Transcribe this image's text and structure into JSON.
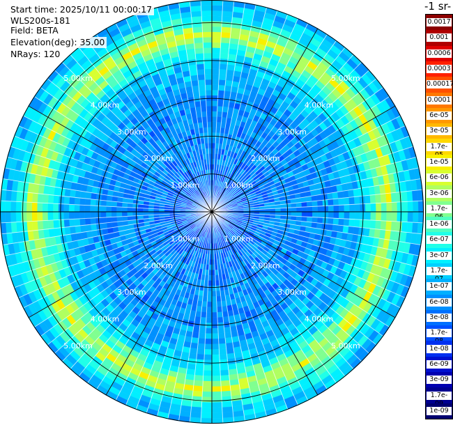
{
  "info": {
    "start_time": "Start time: 2025/10/11 00:00:17",
    "instrument": "WLS200s-181",
    "field": "Field: BETA",
    "elevation": "Elevation(deg): 35.00",
    "nrays": "NRays: 120"
  },
  "colorbar": {
    "title_visible": "-1 sr-",
    "labels": [
      "0.0017",
      "0.001",
      "0.0006",
      "0.0003",
      "0.00017",
      "0.0001",
      "6e-05",
      "3e-05",
      "1.7e-05",
      "1e-05",
      "6e-06",
      "3e-06",
      "1.7e-06",
      "1e-06",
      "6e-07",
      "3e-07",
      "1.7e-07",
      "1e-07",
      "6e-08",
      "3e-08",
      "1.7e-08",
      "1e-08",
      "6e-09",
      "3e-09",
      "1.7e-09",
      "1e-09"
    ],
    "colors": [
      "#8b0000",
      "#b00000",
      "#e00000",
      "#ff2000",
      "#ff5000",
      "#ff7800",
      "#ff9800",
      "#ffb800",
      "#ffd800",
      "#f8f000",
      "#d8ff30",
      "#b0ff60",
      "#80ff90",
      "#50ffc0",
      "#20ffe8",
      "#00f0ff",
      "#00d0ff",
      "#00b0ff",
      "#0090ff",
      "#0070ff",
      "#0050ff",
      "#0030f0",
      "#0010d0",
      "#0000b0",
      "#000090",
      "#000070"
    ]
  },
  "chart_data": {
    "type": "heatmap",
    "projection": "polar PPI",
    "n_rays": 120,
    "range_unit": "km",
    "max_range_km": 5.6,
    "range_rings_km": [
      1,
      2,
      3,
      4,
      5
    ],
    "range_ring_labels": [
      "1.00km",
      "2.00km",
      "3.00km",
      "4.00km",
      "5.00km"
    ],
    "radial_profile": [
      {
        "range_km": 0.0,
        "level_index": 20
      },
      {
        "range_km": 1.0,
        "level_index": 19
      },
      {
        "range_km": 2.0,
        "level_index": 18
      },
      {
        "range_km": 3.0,
        "level_index": 18
      },
      {
        "range_km": 3.5,
        "level_index": 17
      },
      {
        "range_km": 4.0,
        "level_index": 16
      },
      {
        "range_km": 4.4,
        "level_index": 13
      },
      {
        "range_km": 4.7,
        "level_index": 10
      },
      {
        "range_km": 5.0,
        "level_index": 14
      },
      {
        "range_km": 5.3,
        "level_index": 16
      },
      {
        "range_km": 5.6,
        "level_index": 17
      }
    ],
    "grid": true
  }
}
